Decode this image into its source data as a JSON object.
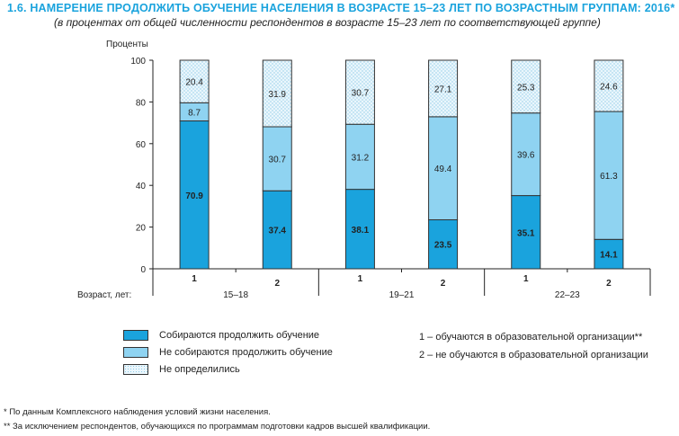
{
  "chart_data": {
    "type": "bar",
    "stacked": true,
    "title": "1.6. НАМЕРЕНИЕ ПРОДОЛЖИТЬ ОБУЧЕНИЕ НАСЕЛЕНИЯ В ВОЗРАСТЕ 15–23 ЛЕТ ПО ВОЗРАСТНЫМ ГРУППАМ: 2016*",
    "subtitle": "(в процентах от общей численности респондентов в возрасте 15–23 лет по соответствующей группе)",
    "ylabel": "Проценты",
    "xlabel": "Возраст, лет:",
    "ylim": [
      0,
      100
    ],
    "yticks": [
      "0",
      "20",
      "40",
      "60",
      "80",
      "100"
    ],
    "categories": [
      "1",
      "2",
      "1",
      "2",
      "1",
      "2"
    ],
    "groups": [
      "15–18",
      "19–21",
      "22–23"
    ],
    "series": [
      {
        "name": "Собираются продолжить обучение",
        "values": [
          70.9,
          37.4,
          38.1,
          23.5,
          35.1,
          14.1
        ],
        "color": "#1aa3dd"
      },
      {
        "name": "Не собираются продолжить обучение",
        "values": [
          8.7,
          30.7,
          31.2,
          49.4,
          39.6,
          61.3
        ],
        "color": "#8fd3f1"
      },
      {
        "name": "Не определились",
        "values": [
          20.4,
          31.9,
          30.7,
          27.1,
          25.3,
          24.6
        ],
        "color": "#e4f4fb"
      }
    ],
    "legend_placement": "bottom",
    "notes": [
      "1 – обучаются в образовательной организации**",
      "2 – не обучаются в образовательной организации"
    ]
  },
  "footnotes": [
    "*  По данным Комплексного наблюдения условий жизни населения.",
    "** За исключением респондентов, обучающихся по программам подготовки кадров высшей квалификации."
  ]
}
